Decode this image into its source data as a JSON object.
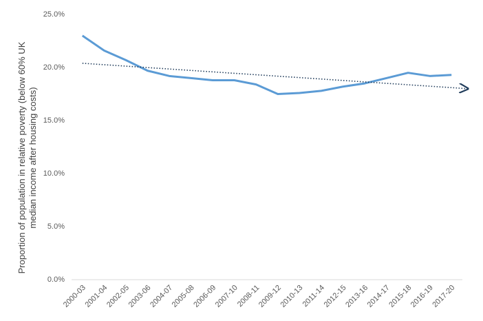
{
  "chart_data": {
    "type": "line",
    "y_label": "Proportion of population in relative poverty (below 60% UK median income after housing costs)",
    "categories": [
      "2000-03",
      "2001-04",
      "2002-05",
      "2003-06",
      "2004-07",
      "2005-08",
      "2006-09",
      "2007-10",
      "2008-11",
      "2009-12",
      "2010-13",
      "2011-14",
      "2012-15",
      "2013-16",
      "2014-17",
      "2015-18",
      "2016-19",
      "2017-20"
    ],
    "series": [
      {
        "color": "#5b9bd5",
        "values": [
          23.0,
          21.6,
          20.7,
          19.7,
          19.2,
          19.0,
          18.8,
          18.8,
          18.4,
          17.5,
          17.6,
          17.8,
          18.2,
          18.5,
          19.0,
          19.5,
          19.2,
          19.3
        ]
      }
    ],
    "trendline": {
      "color": "#1f3b5a",
      "values": [
        20.4,
        18.0
      ]
    },
    "ylim": [
      0,
      25
    ],
    "yticks": [
      {
        "value": 0,
        "label": "0.0%"
      },
      {
        "value": 5,
        "label": "5.0%"
      },
      {
        "value": 10,
        "label": "10.0%"
      },
      {
        "value": 15,
        "label": "15.0%"
      },
      {
        "value": 20,
        "label": "20.0%"
      },
      {
        "value": 25,
        "label": "25.0%"
      }
    ],
    "grid": false
  }
}
